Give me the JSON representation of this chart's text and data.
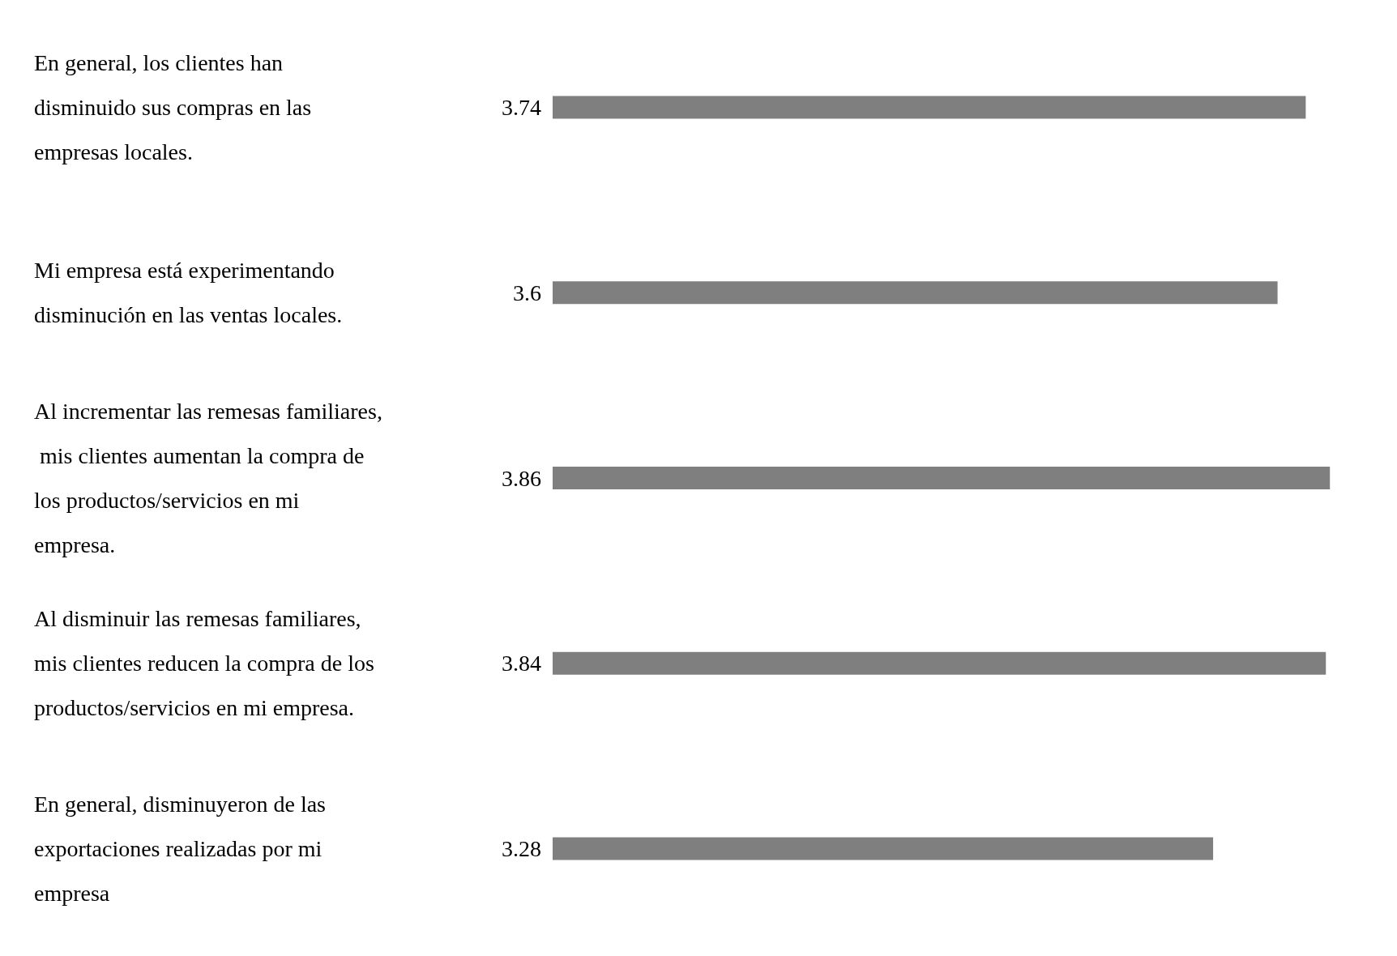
{
  "chart_data": {
    "type": "bar",
    "orientation": "horizontal",
    "data_labels": true,
    "categories": [
      "En general, los clientes han disminuido sus compras en las empresas locales.",
      "Mi empresa está experimentando disminución en las ventas locales.",
      "Al incrementar las remesas familiares, mis clientes aumentan la compra de los productos/servicios en mi empresa.",
      "Al disminuir las remesas familiares, mis clientes reducen la compra de los productos/servicios en mi empresa.",
      "En general, disminuyeron de las exportaciones realizadas por mi empresa"
    ],
    "values": [
      3.74,
      3.6,
      3.86,
      3.84,
      3.28
    ],
    "color": "#7f7f7f"
  }
}
